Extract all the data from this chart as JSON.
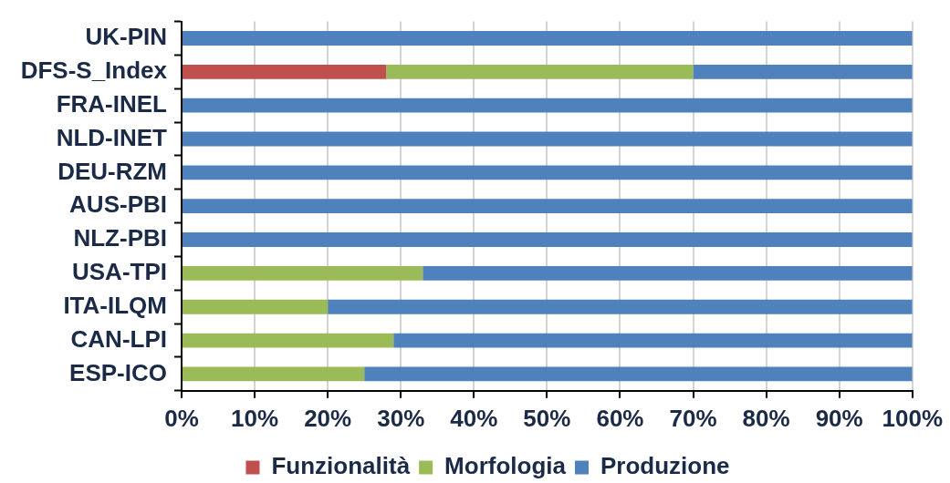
{
  "chart_data": {
    "type": "bar",
    "orientation": "horizontal",
    "stacked": true,
    "categories": [
      "UK-PIN",
      "DFS-S_Index",
      "FRA-INEL",
      "NLD-INET",
      "DEU-RZM",
      "AUS-PBI",
      "NLZ-PBI",
      "USA-TPI",
      "ITA-ILQM",
      "CAN-LPI",
      "ESP-ICO"
    ],
    "series": [
      {
        "name": "Funzionalità",
        "color": "#c0504d",
        "values": [
          0,
          28,
          0,
          0,
          0,
          0,
          0,
          0,
          0,
          0,
          0
        ]
      },
      {
        "name": "Morfologia",
        "color": "#9bbb59",
        "values": [
          0,
          42,
          0,
          0,
          0,
          0,
          0,
          33,
          20,
          29,
          25
        ]
      },
      {
        "name": "Produzione",
        "color": "#4f81bd",
        "values": [
          100,
          30,
          100,
          100,
          100,
          100,
          100,
          67,
          80,
          71,
          75
        ]
      }
    ],
    "xlim": [
      0,
      100
    ],
    "xticks": [
      {
        "value": 0,
        "label": "0%"
      },
      {
        "value": 10,
        "label": "10%"
      },
      {
        "value": 20,
        "label": "20%"
      },
      {
        "value": 30,
        "label": "30%"
      },
      {
        "value": 40,
        "label": "40%"
      },
      {
        "value": 50,
        "label": "50%"
      },
      {
        "value": 60,
        "label": "60%"
      },
      {
        "value": 70,
        "label": "70%"
      },
      {
        "value": 80,
        "label": "80%"
      },
      {
        "value": 90,
        "label": "90%"
      },
      {
        "value": 100,
        "label": "100%"
      }
    ],
    "grid": "x",
    "legend": "bottom"
  }
}
